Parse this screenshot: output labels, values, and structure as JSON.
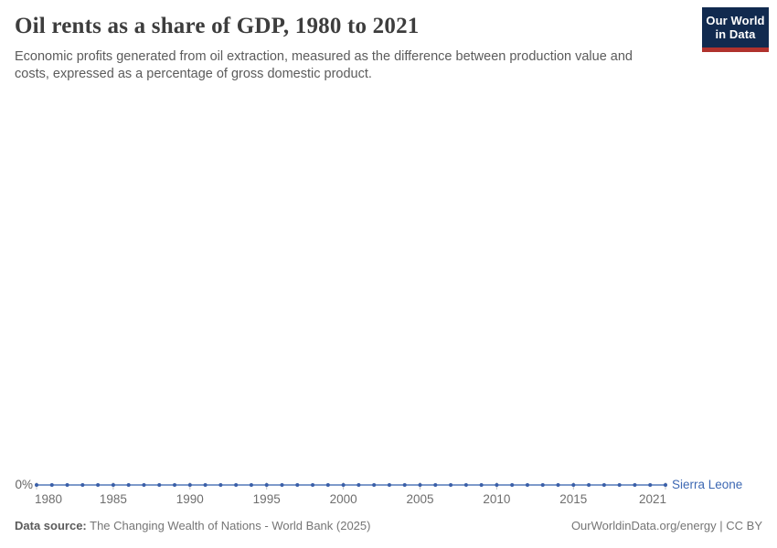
{
  "header": {
    "title": "Oil rents as a share of GDP, 1980 to 2021",
    "subtitle": "Economic profits generated from oil extraction, measured as the difference between production value and costs, expressed as a percentage of gross domestic product."
  },
  "logo": {
    "line1": "Our World",
    "line2": "in Data",
    "bg_color": "#112a4f",
    "stripe_color": "#b0322d"
  },
  "chart_data": {
    "type": "line",
    "title": "Oil rents as a share of GDP, 1980 to 2021",
    "unit": "%",
    "x_range": [
      1980,
      2021
    ],
    "ylim": [
      0,
      100
    ],
    "grid": false,
    "legend_position": "end-of-line",
    "x_ticks": [
      1980,
      1985,
      1990,
      1995,
      2000,
      2005,
      2010,
      2015,
      2021
    ],
    "y_axis": {
      "tick_label": "0%"
    },
    "axis_color": "#c2c2c2",
    "series": [
      {
        "name": "Sierra Leone",
        "color": "#5378b9",
        "marker_color": "#3a5fa8",
        "label_color": "#3d68b3",
        "x": [
          1980,
          1981,
          1982,
          1983,
          1984,
          1985,
          1986,
          1987,
          1988,
          1989,
          1990,
          1991,
          1992,
          1993,
          1994,
          1995,
          1996,
          1997,
          1998,
          1999,
          2000,
          2001,
          2002,
          2003,
          2004,
          2005,
          2006,
          2007,
          2008,
          2009,
          2010,
          2011,
          2012,
          2013,
          2014,
          2015,
          2016,
          2017,
          2018,
          2019,
          2020,
          2021
        ],
        "values": [
          0,
          0,
          0,
          0,
          0,
          0,
          0,
          0,
          0,
          0,
          0,
          0,
          0,
          0,
          0,
          0,
          0,
          0,
          0,
          0,
          0,
          0,
          0,
          0,
          0,
          0,
          0,
          0,
          0,
          0,
          0,
          0,
          0,
          0,
          0,
          0,
          0,
          0,
          0,
          0,
          0,
          0
        ]
      }
    ]
  },
  "footer": {
    "source_label": "Data source:",
    "source_value": " The Changing Wealth of Nations - World Bank (2025)",
    "credit": "OurWorldinData.org/energy | CC BY"
  }
}
